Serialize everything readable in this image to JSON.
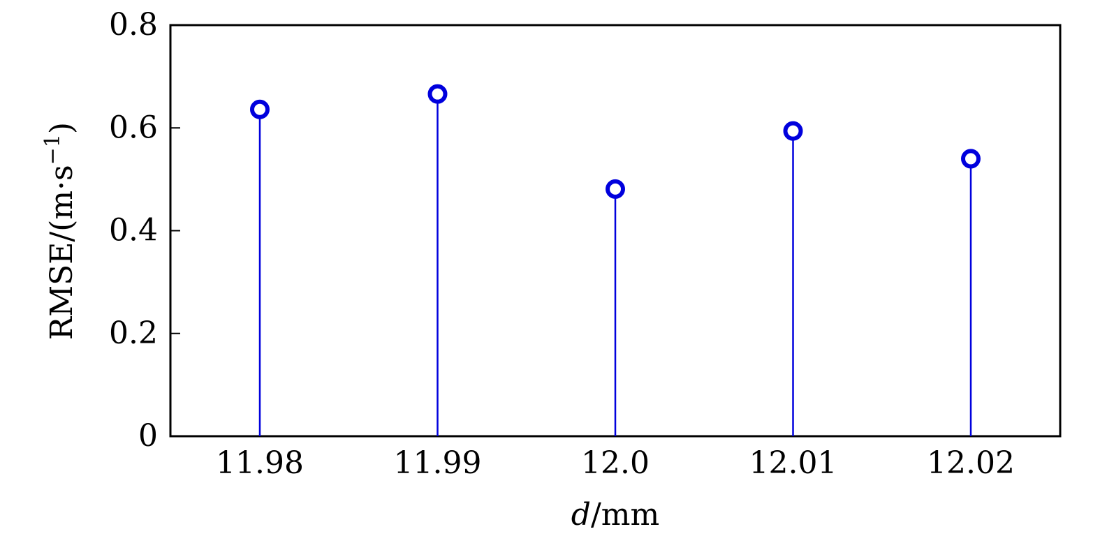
{
  "chart_data": {
    "type": "stem",
    "x": [
      "11.98",
      "11.99",
      "12.0",
      "12.01",
      "12.02"
    ],
    "values": [
      0.636,
      0.666,
      0.481,
      0.594,
      0.54
    ],
    "xlabel_var": "d",
    "xlabel_unit": "/mm",
    "ylabel": "RMSE/(m·s",
    "ylabel_sup": "−1",
    "ylabel_close": ")",
    "ylim": [
      0,
      0.8
    ],
    "yticks": [
      "0",
      "0.2",
      "0.4",
      "0.6",
      "0.8"
    ],
    "ytick_values": [
      0,
      0.2,
      0.4,
      0.6,
      0.8
    ],
    "grid": false,
    "series_color": "#0000dd"
  }
}
